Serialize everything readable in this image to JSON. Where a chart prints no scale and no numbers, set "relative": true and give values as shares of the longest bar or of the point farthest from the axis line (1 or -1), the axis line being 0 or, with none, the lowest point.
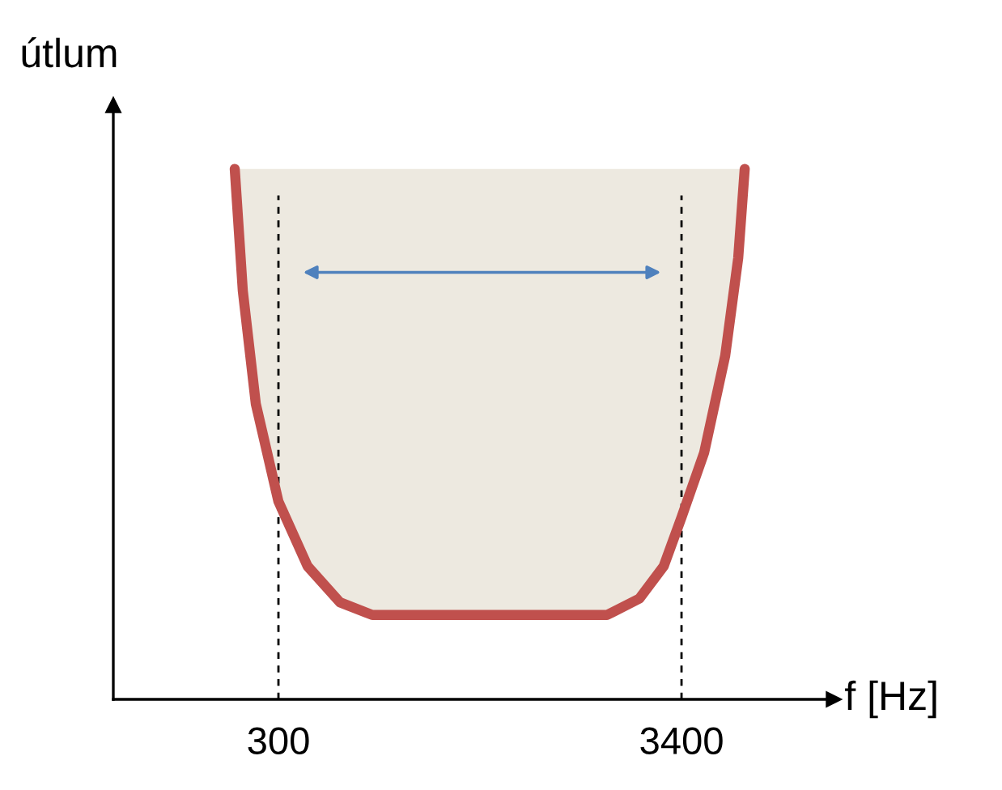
{
  "chart_data": {
    "type": "area",
    "relative": true,
    "xlabel": "f [Hz]",
    "ylabel": "útlum",
    "xlim": [
      -970,
      4570
    ],
    "xticks": [
      300,
      3400
    ],
    "tick_labels": "x",
    "grid": false,
    "legend": false,
    "series": [
      {
        "color": "#c0504d",
        "x": [
          -36,
          26,
          126,
          300,
          524,
          773,
          1022,
          2827,
          3076,
          3263,
          3400,
          3574,
          3736,
          3836,
          3886
        ],
        "values": [
          1.0,
          0.77,
          0.557,
          0.373,
          0.251,
          0.183,
          0.159,
          0.159,
          0.19,
          0.251,
          0.343,
          0.465,
          0.648,
          0.832,
          1.0
        ]
      }
    ],
    "ref_lines": [
      {
        "axis": "x",
        "value": 300,
        "color": "#000000",
        "line_style": "dashed"
      },
      {
        "axis": "x",
        "value": 3400,
        "color": "#000000",
        "line_style": "dashed"
      }
    ]
  }
}
